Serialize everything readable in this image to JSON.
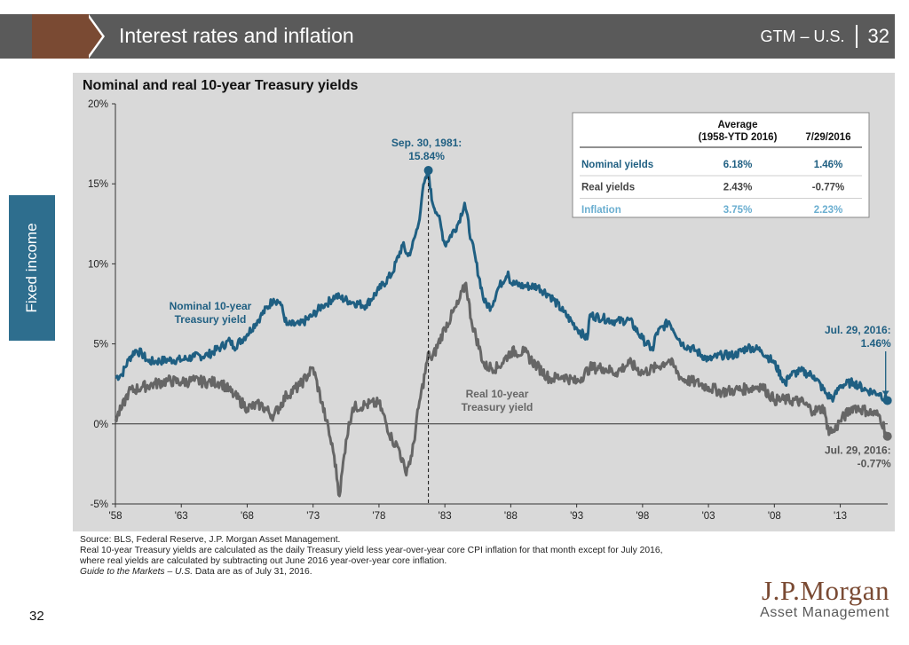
{
  "header": {
    "title": "Interest rates and inflation",
    "right_label": "GTM – U.S.",
    "page": "32"
  },
  "side_tab": "Fixed income",
  "page_number": "32",
  "colors": {
    "nominal": "#1f5f82",
    "real": "#666666",
    "inflation": "#6aaed0",
    "header": "#5a5a5a",
    "brown": "#7a4a33",
    "panel": "#d9d9d9"
  },
  "chart_data": {
    "type": "line",
    "title": "Nominal and real 10-year Treasury yields",
    "xlabel": "",
    "ylabel": "",
    "xlim": [
      1958,
      2016.6
    ],
    "ylim": [
      -5,
      20
    ],
    "x_ticks": [
      "'58",
      "'63",
      "'68",
      "'73",
      "'78",
      "'83",
      "'88",
      "'93",
      "'98",
      "'03",
      "'08",
      "'13"
    ],
    "y_ticks": [
      "-5%",
      "0%",
      "5%",
      "10%",
      "15%",
      "20%"
    ],
    "series": [
      {
        "name": "Nominal 10-year Treasury yield",
        "label": [
          "Nominal 10-year",
          "Treasury yield"
        ],
        "color": "#1f5f82",
        "x": [
          1958.0,
          1958.5,
          1959.0,
          1959.5,
          1960.0,
          1960.5,
          1961.0,
          1962.0,
          1963.0,
          1964.0,
          1965.0,
          1966.0,
          1966.7,
          1967.0,
          1968.0,
          1969.0,
          1970.0,
          1970.5,
          1971.0,
          1972.0,
          1973.0,
          1973.7,
          1974.0,
          1974.7,
          1975.0,
          1976.0,
          1977.0,
          1978.0,
          1979.0,
          1979.8,
          1980.2,
          1980.5,
          1981.0,
          1981.3,
          1981.75,
          1982.0,
          1982.5,
          1983.0,
          1984.0,
          1984.5,
          1985.0,
          1986.0,
          1986.5,
          1987.0,
          1987.8,
          1988.0,
          1989.0,
          1990.0,
          1991.0,
          1992.0,
          1993.0,
          1993.8,
          1994.0,
          1995.0,
          1996.0,
          1997.0,
          1998.0,
          1998.8,
          1999.0,
          2000.0,
          2001.0,
          2002.0,
          2003.0,
          2004.0,
          2005.0,
          2006.0,
          2007.0,
          2008.0,
          2008.9,
          2009.0,
          2010.0,
          2011.0,
          2012.0,
          2012.5,
          2013.0,
          2014.0,
          2015.0,
          2016.0,
          2016.58
        ],
        "y": [
          2.9,
          3.1,
          4.0,
          4.6,
          4.4,
          3.9,
          3.9,
          4.0,
          4.0,
          4.2,
          4.3,
          4.8,
          5.2,
          4.8,
          5.6,
          6.7,
          7.8,
          7.6,
          6.2,
          6.2,
          6.8,
          7.4,
          7.5,
          8.0,
          7.9,
          7.6,
          7.4,
          8.4,
          9.4,
          11.2,
          10.5,
          11.0,
          12.5,
          14.5,
          15.84,
          14.0,
          13.0,
          11.2,
          12.5,
          13.8,
          11.5,
          7.6,
          7.3,
          8.4,
          9.5,
          8.8,
          8.6,
          8.6,
          8.0,
          7.0,
          6.0,
          5.3,
          6.8,
          6.6,
          6.4,
          6.5,
          5.3,
          4.6,
          5.6,
          6.4,
          5.0,
          4.6,
          4.0,
          4.3,
          4.3,
          4.8,
          4.6,
          3.8,
          2.4,
          3.0,
          3.3,
          3.0,
          1.8,
          1.6,
          2.4,
          2.6,
          2.1,
          1.9,
          1.46
        ]
      },
      {
        "name": "Real 10-year Treasury yield",
        "label": [
          "Real 10-year",
          "Treasury yield"
        ],
        "color": "#666666",
        "x": [
          1958.0,
          1958.5,
          1959.0,
          1960.0,
          1961.0,
          1962.0,
          1963.0,
          1964.0,
          1965.0,
          1966.0,
          1967.0,
          1968.0,
          1969.0,
          1970.0,
          1971.0,
          1972.0,
          1973.0,
          1974.0,
          1974.6,
          1975.0,
          1975.5,
          1976.0,
          1977.0,
          1978.0,
          1979.0,
          1979.5,
          1980.0,
          1980.5,
          1981.0,
          1981.8,
          1982.0,
          1983.0,
          1984.0,
          1984.6,
          1985.0,
          1986.0,
          1987.0,
          1988.0,
          1989.0,
          1990.0,
          1991.0,
          1992.0,
          1993.0,
          1994.0,
          1995.0,
          1996.0,
          1997.0,
          1998.0,
          1999.0,
          2000.0,
          2001.0,
          2002.0,
          2003.0,
          2004.0,
          2005.0,
          2006.0,
          2007.0,
          2008.0,
          2009.0,
          2010.0,
          2011.0,
          2011.8,
          2012.0,
          2012.5,
          2013.0,
          2013.8,
          2014.0,
          2015.0,
          2016.0,
          2016.58
        ],
        "y": [
          0.3,
          1.0,
          2.0,
          2.3,
          2.5,
          2.7,
          2.6,
          2.7,
          2.6,
          2.6,
          1.8,
          1.0,
          1.2,
          0.5,
          1.8,
          2.4,
          3.5,
          0.2,
          -2.0,
          -4.5,
          -1.0,
          1.0,
          1.2,
          1.3,
          -1.0,
          -1.5,
          -3.0,
          -2.0,
          1.0,
          4.5,
          4.0,
          6.0,
          7.5,
          8.8,
          6.5,
          3.6,
          3.5,
          4.5,
          4.5,
          3.6,
          2.8,
          3.0,
          2.6,
          3.5,
          3.5,
          3.2,
          3.8,
          3.2,
          3.5,
          4.0,
          2.8,
          2.6,
          2.3,
          2.0,
          2.1,
          2.2,
          2.4,
          1.5,
          1.5,
          1.4,
          0.8,
          1.0,
          -0.3,
          -0.5,
          0.2,
          0.9,
          1.1,
          0.8,
          0.5,
          -0.77
        ]
      }
    ],
    "annotations": {
      "peak": {
        "label": [
          "Sep. 30, 1981:",
          "15.84%"
        ],
        "x": 1981.75,
        "y": 15.84
      },
      "latest_nominal": {
        "label": [
          "Jul. 29, 2016:",
          "1.46%"
        ],
        "x": 2016.58,
        "y": 1.46
      },
      "latest_real": {
        "label": [
          "Jul. 29, 2016:",
          "-0.77%"
        ],
        "x": 2016.58,
        "y": -0.77
      }
    },
    "table": {
      "headers": [
        "",
        "Average\n(1958-YTD 2016)",
        "7/29/2016"
      ],
      "header_col1_line1": "Average",
      "header_col1_line2": "(1958-YTD 2016)",
      "header_col2": "7/29/2016",
      "rows": [
        {
          "label": "Nominal yields",
          "avg": "6.18%",
          "latest": "1.46%",
          "color": "#1f5f82"
        },
        {
          "label": "Real yields",
          "avg": "2.43%",
          "latest": "-0.77%",
          "color": "#444444"
        },
        {
          "label": "Inflation",
          "avg": "3.75%",
          "latest": "2.23%",
          "color": "#6aaed0"
        }
      ]
    }
  },
  "footnotes": {
    "source": "Source: BLS, Federal Reserve, J.P. Morgan Asset Management.",
    "note1": "Real 10-year Treasury yields are calculated as the daily Treasury yield less year-over-year core CPI inflation for that month except for July 2016,",
    "note2": "where real yields are calculated by subtracting out June 2016 year-over-year core inflation.",
    "note3_italic": "Guide to the Markets – U.S.",
    "note3_rest": " Data are as of July 31, 2016."
  },
  "logo": {
    "name": "J.P.Morgan",
    "tagline": "Asset Management"
  }
}
